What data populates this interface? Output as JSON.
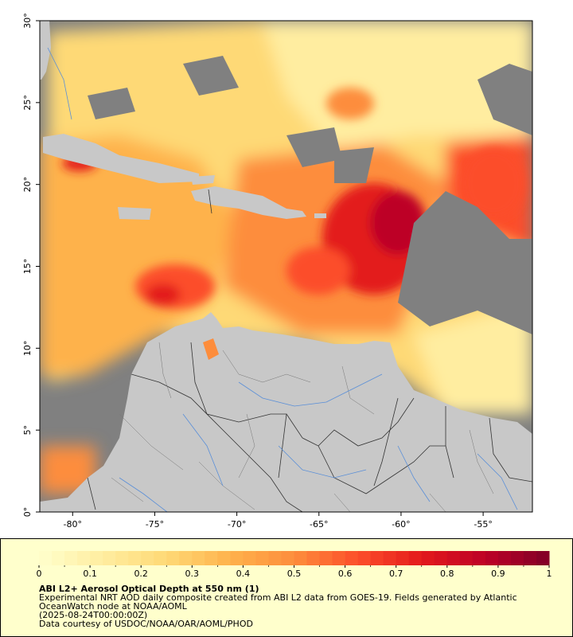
{
  "map": {
    "lon_ticks": [
      "-80°",
      "-75°",
      "-70°",
      "-65°",
      "-60°",
      "-55°"
    ],
    "lat_ticks": [
      "0°",
      "5°",
      "10°",
      "15°",
      "20°",
      "25°",
      "30°"
    ],
    "lon_range": [
      -82,
      -52
    ],
    "lat_range": [
      0,
      30
    ],
    "colors": {
      "land": "#c8c8c8",
      "no_data": "#808080",
      "border": "#333333",
      "river": "#5a8fd8"
    }
  },
  "colorbar": {
    "ticks": [
      "0",
      "0.1",
      "0.2",
      "0.3",
      "0.4",
      "0.5",
      "0.6",
      "0.7",
      "0.8",
      "0.9",
      "1"
    ],
    "range": [
      0,
      1
    ],
    "colors": [
      "#ffffcc",
      "#ffeda0",
      "#fed976",
      "#feb24c",
      "#fd8d3c",
      "#fc4e2a",
      "#e31a1c",
      "#bd0026",
      "#800026"
    ]
  },
  "caption": {
    "title": "ABI L2+ Aerosol Optical Depth at 550 nm (1)",
    "line1": "Experimental NRT AOD daily composite created from ABI L2 data from GOES-19. Fields generated by Atlantic",
    "line2": "OceanWatch node at NOAA/AOML",
    "line3": "(2025-08-24T00:00:00Z)",
    "line4": "Data courtesy of USDOC/NOAA/OAR/AOML/PHOD"
  }
}
